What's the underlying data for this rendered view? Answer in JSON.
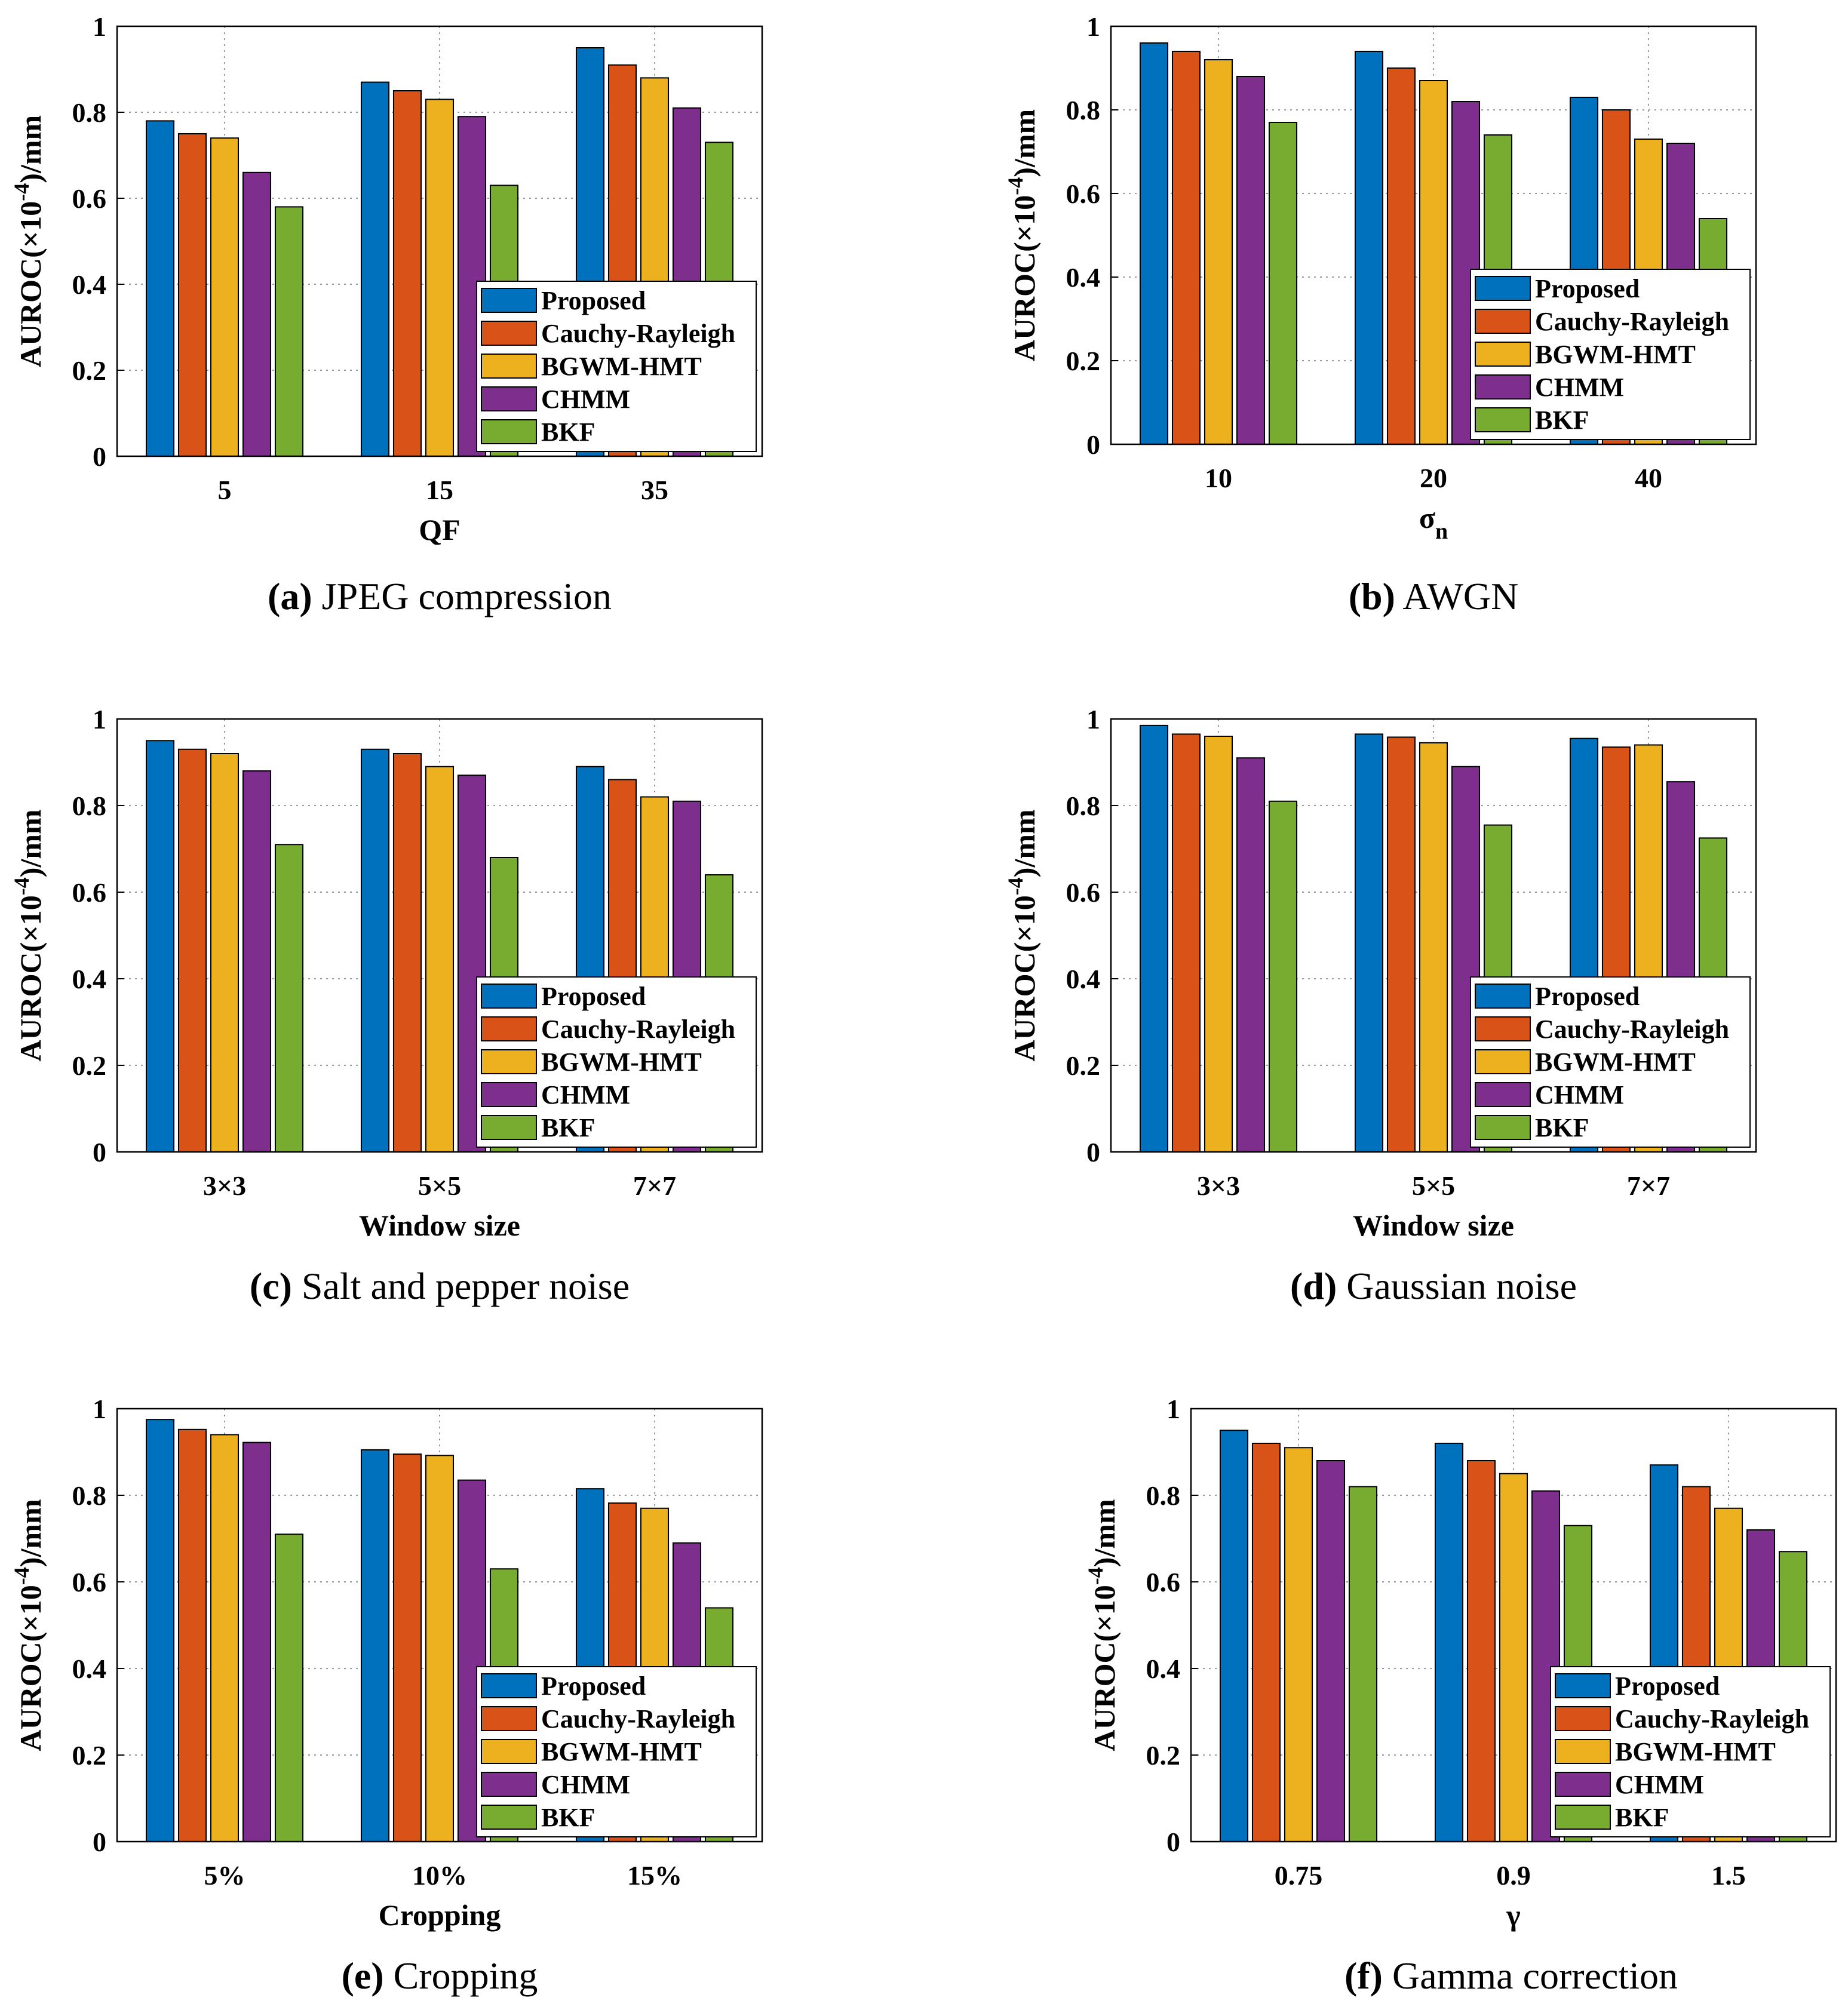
{
  "legend_entries": [
    "Proposed",
    "Cauchy-Rayleigh",
    "BGWM-HMT",
    "CHMM",
    "BKF"
  ],
  "series_colors": [
    "#0072BD",
    "#D95319",
    "#EDB120",
    "#7E2F8E",
    "#77AC30"
  ],
  "chart_data": [
    {
      "type": "bar",
      "id": "a",
      "caption_letter": "(a)",
      "caption_text": "JPEG compression",
      "xlabel": "QF",
      "xlabel_sub": "",
      "ylabel_main": "AUROC(×10",
      "ylabel_sup": "-4",
      "ylabel_unit": ")/mm",
      "ylim": [
        0,
        1
      ],
      "yticks": [
        "0",
        "0.2",
        "0.4",
        "0.6",
        "0.8",
        "1"
      ],
      "categories": [
        "5",
        "15",
        "35"
      ],
      "series": [
        {
          "name": "Proposed",
          "values": [
            0.78,
            0.87,
            0.95
          ]
        },
        {
          "name": "Cauchy-Rayleigh",
          "values": [
            0.75,
            0.85,
            0.91
          ]
        },
        {
          "name": "BGWM-HMT",
          "values": [
            0.74,
            0.83,
            0.88
          ]
        },
        {
          "name": "CHMM",
          "values": [
            0.66,
            0.79,
            0.81
          ]
        },
        {
          "name": "BKF",
          "values": [
            0.58,
            0.63,
            0.73
          ]
        }
      ],
      "grid": true,
      "legend_position": "bottom-right"
    },
    {
      "type": "bar",
      "id": "b",
      "caption_letter": "(b)",
      "caption_text": "AWGN",
      "xlabel": "σ",
      "xlabel_sub": "n",
      "ylabel_main": "AUROC(×10",
      "ylabel_sup": "-4",
      "ylabel_unit": ")/mm",
      "ylim": [
        0,
        1
      ],
      "yticks": [
        "0",
        "0.2",
        "0.4",
        "0.6",
        "0.8",
        "1"
      ],
      "categories": [
        "10",
        "20",
        "40"
      ],
      "series": [
        {
          "name": "Proposed",
          "values": [
            0.96,
            0.94,
            0.83
          ]
        },
        {
          "name": "Cauchy-Rayleigh",
          "values": [
            0.94,
            0.9,
            0.8
          ]
        },
        {
          "name": "BGWM-HMT",
          "values": [
            0.92,
            0.87,
            0.73
          ]
        },
        {
          "name": "CHMM",
          "values": [
            0.88,
            0.82,
            0.72
          ]
        },
        {
          "name": "BKF",
          "values": [
            0.77,
            0.74,
            0.54
          ]
        }
      ],
      "grid": true,
      "legend_position": "bottom-right"
    },
    {
      "type": "bar",
      "id": "c",
      "caption_letter": "(c)",
      "caption_text": "Salt and pepper noise",
      "xlabel": "Window size",
      "xlabel_sub": "",
      "ylabel_main": "AUROC(×10",
      "ylabel_sup": "-4",
      "ylabel_unit": ")/mm",
      "ylim": [
        0,
        1
      ],
      "yticks": [
        "0",
        "0.2",
        "0.4",
        "0.6",
        "0.8",
        "1"
      ],
      "categories": [
        "3×3",
        "5×5",
        "7×7"
      ],
      "series": [
        {
          "name": "Proposed",
          "values": [
            0.95,
            0.93,
            0.89
          ]
        },
        {
          "name": "Cauchy-Rayleigh",
          "values": [
            0.93,
            0.92,
            0.86
          ]
        },
        {
          "name": "BGWM-HMT",
          "values": [
            0.92,
            0.89,
            0.82
          ]
        },
        {
          "name": "CHMM",
          "values": [
            0.88,
            0.87,
            0.81
          ]
        },
        {
          "name": "BKF",
          "values": [
            0.71,
            0.68,
            0.64
          ]
        }
      ],
      "grid": true,
      "legend_position": "bottom-right"
    },
    {
      "type": "bar",
      "id": "d",
      "caption_letter": "(d)",
      "caption_text": "Gaussian noise",
      "xlabel": "Window size",
      "xlabel_sub": "",
      "ylabel_main": "AUROC(×10",
      "ylabel_sup": "-4",
      "ylabel_unit": ")/mm",
      "ylim": [
        0,
        1
      ],
      "yticks": [
        "0",
        "0.2",
        "0.4",
        "0.6",
        "0.8",
        "1"
      ],
      "categories": [
        "3×3",
        "5×5",
        "7×7"
      ],
      "series": [
        {
          "name": "Proposed",
          "values": [
            0.985,
            0.965,
            0.955
          ]
        },
        {
          "name": "Cauchy-Rayleigh",
          "values": [
            0.965,
            0.958,
            0.935
          ]
        },
        {
          "name": "BGWM-HMT",
          "values": [
            0.96,
            0.945,
            0.94
          ]
        },
        {
          "name": "CHMM",
          "values": [
            0.91,
            0.89,
            0.855
          ]
        },
        {
          "name": "BKF",
          "values": [
            0.81,
            0.755,
            0.725
          ]
        }
      ],
      "grid": true,
      "legend_position": "bottom-right"
    },
    {
      "type": "bar",
      "id": "e",
      "caption_letter": "(e)",
      "caption_text": "Cropping",
      "xlabel": "Cropping",
      "xlabel_sub": "",
      "ylabel_main": "AUROC(×10",
      "ylabel_sup": "-4",
      "ylabel_unit": ")/mm",
      "ylim": [
        0,
        1
      ],
      "yticks": [
        "0",
        "0.2",
        "0.4",
        "0.6",
        "0.8",
        "1"
      ],
      "categories": [
        "5%",
        "10%",
        "15%"
      ],
      "series": [
        {
          "name": "Proposed",
          "values": [
            0.975,
            0.905,
            0.815
          ]
        },
        {
          "name": "Cauchy-Rayleigh",
          "values": [
            0.952,
            0.895,
            0.782
          ]
        },
        {
          "name": "BGWM-HMT",
          "values": [
            0.94,
            0.892,
            0.77
          ]
        },
        {
          "name": "CHMM",
          "values": [
            0.922,
            0.835,
            0.69
          ]
        },
        {
          "name": "BKF",
          "values": [
            0.71,
            0.63,
            0.54
          ]
        }
      ],
      "grid": true,
      "legend_position": "bottom-right"
    },
    {
      "type": "bar",
      "id": "f",
      "caption_letter": "(f)",
      "caption_text": "Gamma correction",
      "xlabel": "γ",
      "xlabel_sub": "",
      "ylabel_main": "AUROC(×10",
      "ylabel_sup": "-4",
      "ylabel_unit": ")/mm",
      "ylim": [
        0,
        1
      ],
      "yticks": [
        "0",
        "0.2",
        "0.4",
        "0.6",
        "0.8",
        "1"
      ],
      "categories": [
        "0.75",
        "0.9",
        "1.5"
      ],
      "series": [
        {
          "name": "Proposed",
          "values": [
            0.95,
            0.92,
            0.87
          ]
        },
        {
          "name": "Cauchy-Rayleigh",
          "values": [
            0.92,
            0.88,
            0.82
          ]
        },
        {
          "name": "BGWM-HMT",
          "values": [
            0.91,
            0.85,
            0.77
          ]
        },
        {
          "name": "CHMM",
          "values": [
            0.88,
            0.81,
            0.72
          ]
        },
        {
          "name": "BKF",
          "values": [
            0.82,
            0.73,
            0.67
          ]
        }
      ],
      "grid": true,
      "legend_position": "bottom-right"
    }
  ]
}
